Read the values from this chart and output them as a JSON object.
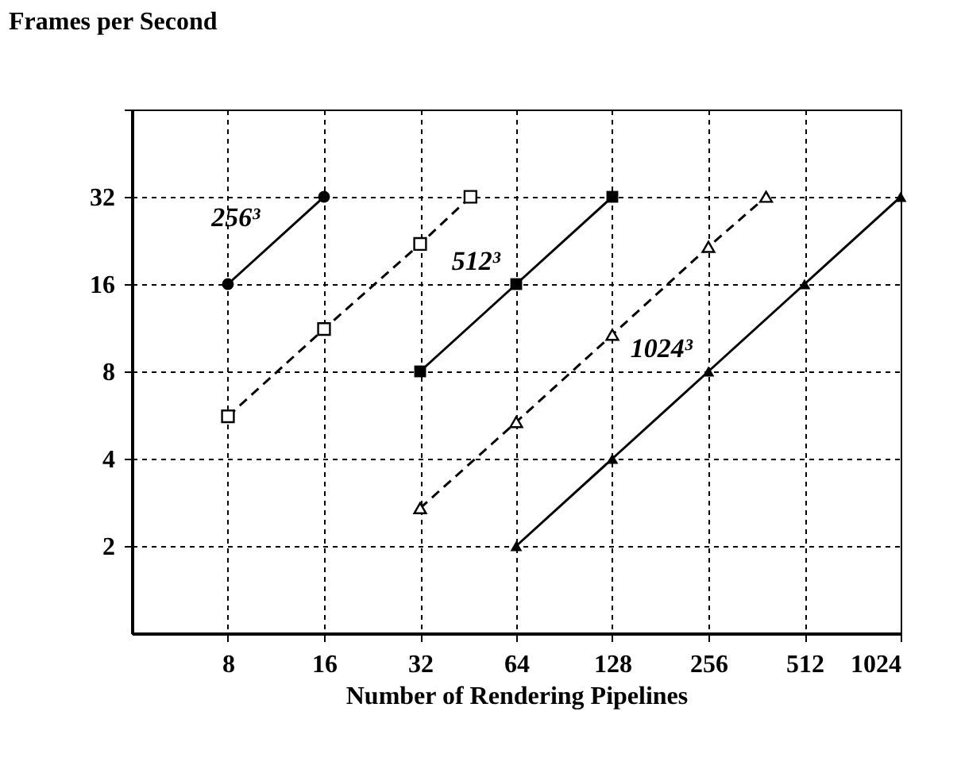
{
  "chart_data": {
    "type": "line",
    "xlabel": "Number of Rendering Pipelines",
    "ylabel": "Frames per Second",
    "log": "xy",
    "grid": true,
    "xlim": [
      4,
      1024
    ],
    "xticks": [
      8,
      16,
      32,
      64,
      128,
      256,
      512,
      1024
    ],
    "ylim": [
      1,
      64
    ],
    "yticks": [
      2,
      4,
      8,
      16,
      32,
      {
        "value": 64,
        "label": null
      }
    ],
    "series": [
      {
        "name": "256³",
        "color": "#000000",
        "x": [
          8,
          16
        ],
        "values": [
          16,
          32
        ],
        "marker": "circle",
        "line_style": "solid"
      },
      {
        "color": "#000000",
        "x": [
          8,
          16,
          32,
          46
        ],
        "values": [
          5.6,
          11.2,
          22,
          32
        ],
        "marker": "square",
        "line_style": "dashed"
      },
      {
        "name": "512³",
        "color": "#000000",
        "x": [
          32,
          64,
          128
        ],
        "values": [
          8,
          16,
          32
        ],
        "marker": "square",
        "line_style": "solid"
      },
      {
        "color": "#000000",
        "x": [
          32,
          64,
          128,
          256,
          388
        ],
        "values": [
          2.7,
          5.35,
          10.7,
          21.5,
          32
        ],
        "marker": "triangle",
        "line_style": "dashed"
      },
      {
        "name": "1024³",
        "color": "#000000",
        "x": [
          64,
          128,
          256,
          512,
          1024
        ],
        "values": [
          2,
          4,
          8,
          16,
          32
        ],
        "marker": "triangle",
        "line_style": "solid"
      }
    ]
  }
}
